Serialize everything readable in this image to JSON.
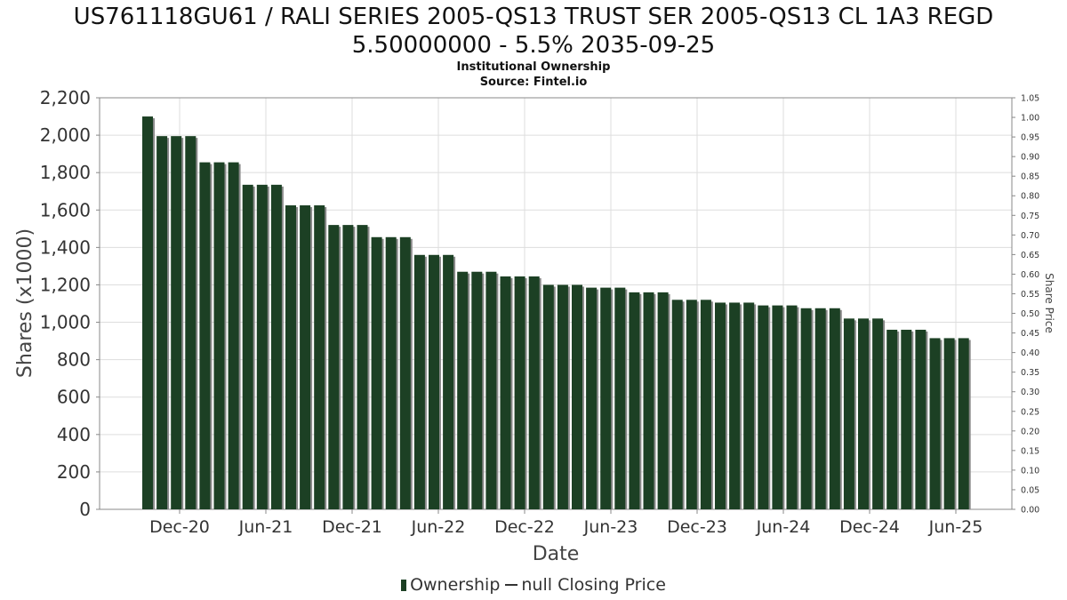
{
  "header": {
    "title_line1": "US761118GU61 / RALI SERIES 2005-QS13 TRUST SER 2005-QS13 CL 1A3 REGD",
    "title_line2": "5.50000000 - 5.5% 2035-09-25",
    "subtitle1": "Institutional Ownership",
    "subtitle2": "Source: Fintel.io"
  },
  "legend": {
    "ownership": "Ownership",
    "price": "null Closing Price"
  },
  "colors": {
    "bar": "#1c4024",
    "bar_shadow": "#8a8a8a",
    "grid": "#dddddd",
    "axis": "#888888"
  },
  "chart_data": {
    "type": "bar",
    "xlabel": "Date",
    "ylabel": "Shares (x1000)",
    "y2label": "Share Price",
    "ylim": [
      0,
      2200
    ],
    "y2lim": [
      0,
      1.05
    ],
    "grid": true,
    "legend_position": "bottom",
    "yticks": [
      "0",
      "200",
      "400",
      "600",
      "800",
      "1,000",
      "1,200",
      "1,400",
      "1,600",
      "1,800",
      "2,000",
      "2,200"
    ],
    "y2ticks": [
      "0.00",
      "0.05",
      "0.10",
      "0.15",
      "0.20",
      "0.25",
      "0.30",
      "0.35",
      "0.40",
      "0.45",
      "0.50",
      "0.55",
      "0.60",
      "0.65",
      "0.70",
      "0.75",
      "0.80",
      "0.85",
      "0.90",
      "0.95",
      "1.00",
      "1.05"
    ],
    "xticks": [
      "Dec-20",
      "Jun-21",
      "Dec-21",
      "Jun-22",
      "Dec-22",
      "Jun-23",
      "Dec-23",
      "Jun-24",
      "Dec-24",
      "Jun-25"
    ],
    "series": [
      {
        "name": "Ownership",
        "values": [
          2100,
          1995,
          1995,
          1995,
          1855,
          1855,
          1855,
          1735,
          1735,
          1735,
          1625,
          1625,
          1625,
          1520,
          1520,
          1520,
          1455,
          1455,
          1455,
          1360,
          1360,
          1360,
          1270,
          1270,
          1270,
          1245,
          1245,
          1245,
          1200,
          1200,
          1200,
          1185,
          1185,
          1185,
          1160,
          1160,
          1160,
          1120,
          1120,
          1120,
          1105,
          1105,
          1105,
          1090,
          1090,
          1090,
          1075,
          1075,
          1075,
          1020,
          1020,
          1020,
          960,
          960,
          960,
          915,
          915,
          915
        ]
      }
    ]
  }
}
